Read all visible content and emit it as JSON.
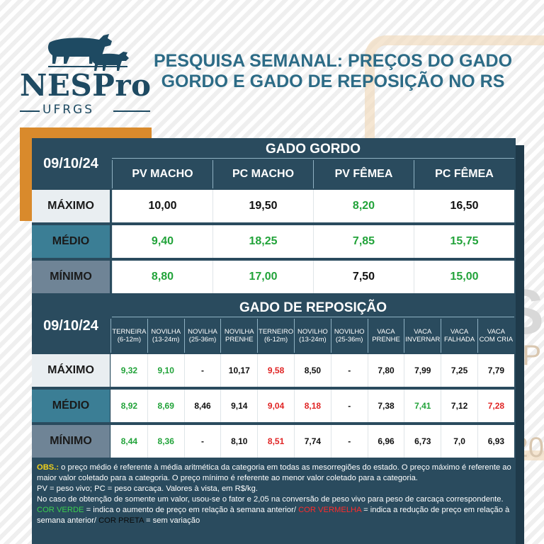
{
  "header": {
    "logo_name": "NESPro",
    "logo_sub": "UFRGS",
    "title": "PESQUISA SEMANAL: PREÇOS DO GADO GORDO E GADO DE REPOSIÇÃO NO RS"
  },
  "gordo": {
    "date": "09/10/24",
    "title": "GADO GORDO",
    "columns": [
      "PV MACHO",
      "PC MACHO",
      "PV FÊMEA",
      "PC FÊMEA"
    ],
    "rows": [
      {
        "label": "MÁXIMO",
        "values": [
          "10,00",
          "19,50",
          "8,20",
          "16,50"
        ],
        "colors": [
          "black",
          "black",
          "green",
          "black"
        ]
      },
      {
        "label": "MÉDIO",
        "values": [
          "9,40",
          "18,25",
          "7,85",
          "15,75"
        ],
        "colors": [
          "green",
          "green",
          "green",
          "green"
        ]
      },
      {
        "label": "MÍNIMO",
        "values": [
          "8,80",
          "17,00",
          "7,50",
          "15,00"
        ],
        "colors": [
          "green",
          "green",
          "black",
          "green"
        ]
      }
    ]
  },
  "reposicao": {
    "date": "09/10/24",
    "title": "GADO DE REPOSIÇÃO",
    "columns": [
      [
        "TERNEIRA",
        "(6-12m)"
      ],
      [
        "NOVILHA",
        "(13-24m)"
      ],
      [
        "NOVILHA",
        "(25-36m)"
      ],
      [
        "NOVILHA",
        "PRENHE"
      ],
      [
        "TERNEIRO",
        "(6-12m)"
      ],
      [
        "NOVILHO",
        "(13-24m)"
      ],
      [
        "NOVILHO",
        "(25-36m)"
      ],
      [
        "VACA",
        "PRENHE"
      ],
      [
        "VACA",
        "INVERNAR"
      ],
      [
        "VACA",
        "FALHADA"
      ],
      [
        "VACA",
        "COM CRIA"
      ]
    ],
    "rows": [
      {
        "label": "MÁXIMO",
        "values": [
          "9,32",
          "9,10",
          "-",
          "10,17",
          "9,58",
          "8,50",
          "-",
          "7,80",
          "7,99",
          "7,25",
          "7,79"
        ],
        "colors": [
          "green",
          "green",
          "black",
          "black",
          "red",
          "black",
          "black",
          "black",
          "black",
          "black",
          "black"
        ]
      },
      {
        "label": "MÉDIO",
        "values": [
          "8,92",
          "8,69",
          "8,46",
          "9,14",
          "9,04",
          "8,18",
          "-",
          "7,38",
          "7,41",
          "7,12",
          "7,28"
        ],
        "colors": [
          "green",
          "green",
          "black",
          "black",
          "red",
          "red",
          "black",
          "black",
          "green",
          "black",
          "red"
        ]
      },
      {
        "label": "MÍNIMO",
        "values": [
          "8,44",
          "8,36",
          "-",
          "8,10",
          "8,51",
          "7,74",
          "-",
          "6,96",
          "6,73",
          "7,0",
          "6,93"
        ],
        "colors": [
          "green",
          "green",
          "black",
          "black",
          "red",
          "black",
          "black",
          "black",
          "black",
          "black",
          "black"
        ]
      }
    ]
  },
  "obs": {
    "obs_label": "OBS.:",
    "line1": " o preço médio é referente à média aritmética da categoria em todas as mesorregiões do estado. O preço máximo é referente ao maior valor coletado para a categoria. O preço mínimo é referente ao menor valor coletado para a categoria.",
    "line2": "PV = peso vivo; PC = peso carcaça. Valores à vista, em R$/kg.",
    "line3": "No caso de obtenção de somente um valor, usou-se o fator e 2,05 na conversão de peso vivo para peso de carcaça correspondente.",
    "green_label": "COR VERDE",
    "green_text": " = indica o aumento de preço em relação à semana anterior/ ",
    "red_label": "COR VERMELHA",
    "red_text": " = indica a redução de preço em relação à semana anterior/ ",
    "black_label": "COR PRETA",
    "black_text": " = sem variação"
  },
  "colors": {
    "green": "#22a33a",
    "red": "#e02424",
    "black": "#111111",
    "panel": "#2a4b5e",
    "accent": "#d98a2c"
  }
}
